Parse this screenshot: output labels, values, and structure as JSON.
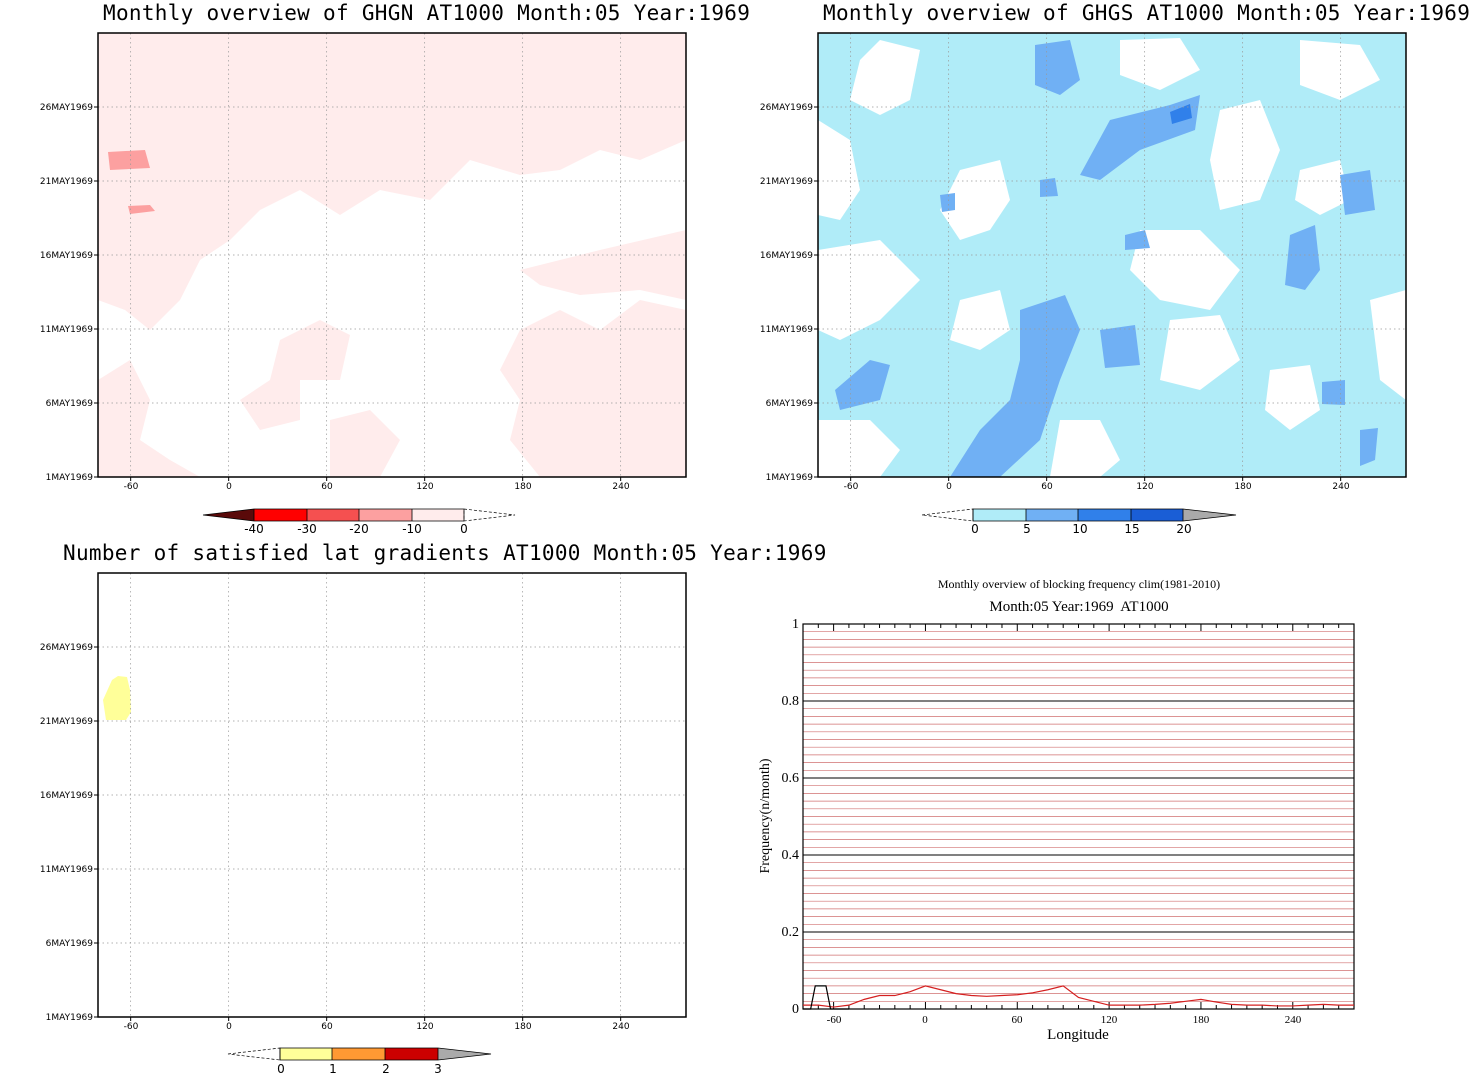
{
  "panels": {
    "ghgn": {
      "title": "Monthly overview of GHGN AT1000 Month:05 Year:1969"
    },
    "ghgs": {
      "title": "Monthly overview of GHGS AT1000 Month:05 Year:1969"
    },
    "lat": {
      "title": "Number of satisfied lat gradients AT1000 Month:05 Year:1969"
    },
    "freq": {
      "title": "Monthly overview of blocking frequency clim(1981-2010)",
      "subtitle": "Month:05 Year:1969  AT1000"
    }
  },
  "colors": {
    "ghgn_levels": [
      "#5a0a0a",
      "#ff0000",
      "#f55050",
      "#fca0a0",
      "#ffecec"
    ],
    "ghgs_levels": [
      "#b0ecf8",
      "#70b0f4",
      "#3080ea",
      "#1a5ed6",
      "#aaaaaa"
    ],
    "lat_levels": [
      "#ffff99",
      "#ff9933",
      "#cc0000",
      "#aaaaaa"
    ],
    "clim_line": "#d42020",
    "year_line": "#000000",
    "grid_minor": "#d07070"
  },
  "chart_data": [
    {
      "type": "heatmap",
      "name": "ghgn",
      "x_ticks": [
        "-60",
        "0",
        "60",
        "120",
        "180",
        "240"
      ],
      "y_ticks": [
        "1MAY1969",
        "6MAY1969",
        "11MAY1969",
        "16MAY1969",
        "21MAY1969",
        "26MAY1969"
      ],
      "xlim": [
        -80,
        280
      ],
      "ylim": [
        1,
        31
      ],
      "colorbar": {
        "labels": [
          "-40",
          "-30",
          "-20",
          "-10",
          "0"
        ]
      }
    },
    {
      "type": "heatmap",
      "name": "ghgs",
      "x_ticks": [
        "-60",
        "0",
        "60",
        "120",
        "180",
        "240"
      ],
      "y_ticks": [
        "1MAY1969",
        "6MAY1969",
        "11MAY1969",
        "16MAY1969",
        "21MAY1969",
        "26MAY1969"
      ],
      "xlim": [
        -80,
        280
      ],
      "ylim": [
        1,
        31
      ],
      "colorbar": {
        "labels": [
          "0",
          "5",
          "10",
          "15",
          "20"
        ]
      }
    },
    {
      "type": "heatmap",
      "name": "lat",
      "x_ticks": [
        "-60",
        "0",
        "60",
        "120",
        "180",
        "240"
      ],
      "y_ticks": [
        "1MAY1969",
        "6MAY1969",
        "11MAY1969",
        "16MAY1969",
        "21MAY1969",
        "26MAY1969"
      ],
      "xlim": [
        -80,
        280
      ],
      "ylim": [
        1,
        31
      ],
      "colorbar": {
        "labels": [
          "0",
          "1",
          "2",
          "3"
        ]
      }
    },
    {
      "type": "line",
      "name": "freq",
      "xlabel": "Longitude",
      "ylabel": "Frequency(n/month)",
      "xlim": [
        -80,
        280
      ],
      "ylim": [
        0,
        1
      ],
      "x_ticks": [
        "-60",
        "0",
        "60",
        "120",
        "180",
        "240"
      ],
      "y_ticks": [
        "0",
        "0.2",
        "0.4",
        "0.6",
        "0.8",
        "1"
      ],
      "series": [
        {
          "x": [
            -80,
            -70,
            -60,
            -50,
            -40,
            -30,
            -20,
            -10,
            0,
            10,
            20,
            30,
            40,
            50,
            60,
            70,
            80,
            90,
            100,
            110,
            120,
            130,
            140,
            150,
            160,
            170,
            180,
            190,
            200,
            210,
            220,
            230,
            240,
            250,
            260,
            270,
            280
          ],
          "values": [
            0.01,
            0.01,
            0.005,
            0.01,
            0.025,
            0.035,
            0.035,
            0.045,
            0.06,
            0.05,
            0.04,
            0.035,
            0.033,
            0.035,
            0.037,
            0.042,
            0.05,
            0.06,
            0.03,
            0.02,
            0.01,
            0.01,
            0.01,
            0.012,
            0.015,
            0.02,
            0.025,
            0.018,
            0.012,
            0.01,
            0.01,
            0.008,
            0.008,
            0.01,
            0.012,
            0.01,
            0.01
          ]
        },
        {
          "x": [
            -80,
            -75,
            -72,
            -65,
            -62,
            -58,
            -56,
            -50
          ],
          "values": [
            0,
            0,
            0.06,
            0.06,
            0,
            0,
            0,
            0
          ]
        }
      ]
    }
  ]
}
